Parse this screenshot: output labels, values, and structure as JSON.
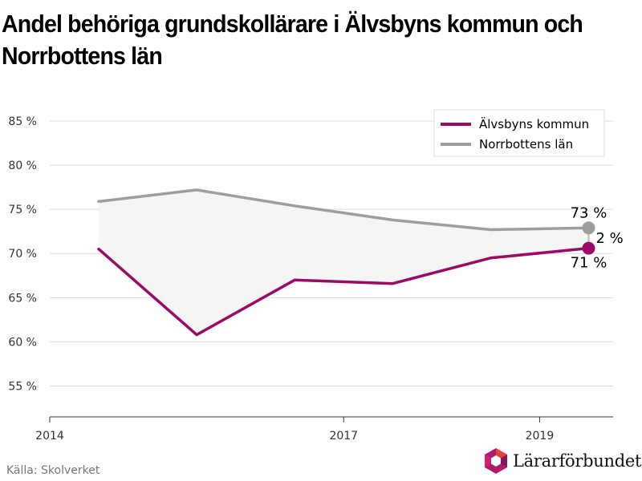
{
  "title": "Andel behöriga grundskollärare i Älvsbyns kommun och Norrbottens län",
  "source": "Källa: Skolverket",
  "logo_text": "Lärarförbundet",
  "colors": {
    "alvsbyn": "#9b0a66",
    "norrbotten": "#9e9e9e",
    "band": "#f5f5f5",
    "grid": "#dddddd"
  },
  "chart_data": {
    "type": "line",
    "x": [
      2014.5,
      2015.5,
      2016.5,
      2017.5,
      2018.5,
      2019.5
    ],
    "x_ticks": [
      2014,
      2017,
      2019
    ],
    "x_tick_labels": [
      "2014",
      "2017",
      "2019"
    ],
    "xlim": [
      2014,
      2019.75
    ],
    "ylim": [
      51.5,
      88
    ],
    "y_ticks": [
      55,
      60,
      65,
      70,
      75,
      80,
      85
    ],
    "y_tick_labels": [
      "55 %",
      "60 %",
      "65 %",
      "70 %",
      "75 %",
      "80 %",
      "85 %"
    ],
    "grid": true,
    "legend_position": "top-right",
    "series": [
      {
        "name": "Älvsbyns kommun",
        "values": [
          70.5,
          60.8,
          67.0,
          66.6,
          69.5,
          70.6
        ],
        "end_label": "71 %"
      },
      {
        "name": "Norrbottens län",
        "values": [
          75.9,
          77.2,
          75.4,
          73.8,
          72.7,
          72.9
        ],
        "end_label": "73 %"
      }
    ],
    "difference_label": "2 %"
  }
}
